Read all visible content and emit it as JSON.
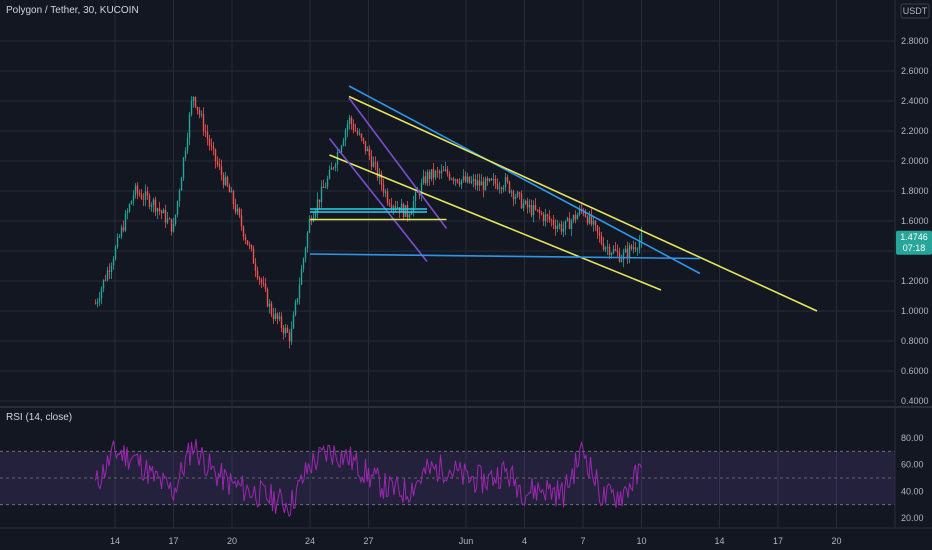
{
  "chart_data": [
    {
      "type": "line",
      "title": "Polygon / Tether, 30, KUCOIN",
      "quote_currency": "USDT",
      "ylim": [
        0.4,
        2.9
      ],
      "y_ticks": [
        "2.8000",
        "2.6000",
        "2.4000",
        "2.2000",
        "2.0000",
        "1.8000",
        "1.6000",
        "1.4000",
        "1.2000",
        "1.0000",
        "0.8000",
        "0.6000",
        "0.4000"
      ],
      "x_ticks": [
        "14",
        "17",
        "20",
        "24",
        "27",
        "Jun",
        "4",
        "7",
        "10",
        "14",
        "17",
        "20"
      ],
      "last_price": {
        "value": "1.4746",
        "countdown": "07:18",
        "color": "#26a69a"
      },
      "series": [
        {
          "x": [
            "May 13",
            "May 14",
            "May 15",
            "May 16",
            "May 17",
            "May 18",
            "May 19",
            "May 20",
            "May 21",
            "May 22",
            "May 23",
            "May 24",
            "May 25",
            "May 26",
            "May 27",
            "May 28",
            "May 29",
            "May 30",
            "May 31",
            "Jun 1",
            "Jun 2",
            "Jun 3",
            "Jun 4",
            "Jun 5",
            "Jun 6",
            "Jun 7",
            "Jun 8",
            "Jun 9",
            "Jun 10"
          ],
          "values": [
            1.05,
            1.4,
            1.8,
            1.72,
            1.55,
            2.45,
            2.05,
            1.75,
            1.38,
            1.0,
            0.82,
            1.62,
            1.9,
            2.28,
            2.05,
            1.75,
            1.65,
            1.9,
            1.92,
            1.86,
            1.84,
            1.86,
            1.7,
            1.63,
            1.55,
            1.68,
            1.45,
            1.36,
            1.48
          ]
        }
      ],
      "trendlines": [
        {
          "color": "#2e96e8",
          "from": [
            "May 26",
            2.5
          ],
          "to": [
            "Jun 13",
            1.25
          ]
        },
        {
          "color": "#e6e65c",
          "from": [
            "May 26",
            2.43
          ],
          "to": [
            "Jun 19",
            1.0
          ]
        },
        {
          "color": "#e6e65c",
          "from": [
            "May 25",
            2.04
          ],
          "to": [
            "Jun 11",
            1.14
          ]
        },
        {
          "color": "#7b4fcf",
          "from": [
            "May 26",
            2.42
          ],
          "to": [
            "May 31",
            1.55
          ]
        },
        {
          "color": "#7b4fcf",
          "from": [
            "May 25",
            2.15
          ],
          "to": [
            "May 30",
            1.33
          ]
        },
        {
          "color": "#2e96e8",
          "from": [
            "May 24",
            1.38
          ],
          "to": [
            "Jun 13",
            1.35
          ]
        },
        {
          "color": "#e6e65c",
          "from": [
            "May 24",
            1.61
          ],
          "to": [
            "May 31",
            1.61
          ]
        },
        {
          "color": "#22d3ee",
          "from": [
            "May 24",
            1.68
          ],
          "to": [
            "May 30",
            1.68
          ]
        },
        {
          "color": "#22d3ee",
          "from": [
            "May 24",
            1.66
          ],
          "to": [
            "May 30",
            1.66
          ]
        }
      ]
    },
    {
      "type": "line",
      "title": "RSI (14, close)",
      "ylim": [
        12,
        88
      ],
      "y_ticks": [
        "80.00",
        "60.00",
        "40.00",
        "20.00"
      ],
      "band": [
        30,
        70
      ],
      "midline": 50,
      "line_color": "#9c27b0",
      "series": [
        {
          "x": [
            "May 13",
            "May 14",
            "May 15",
            "May 16",
            "May 17",
            "May 18",
            "May 19",
            "May 20",
            "May 21",
            "May 22",
            "May 23",
            "May 24",
            "May 25",
            "May 26",
            "May 27",
            "May 28",
            "May 29",
            "May 30",
            "May 31",
            "Jun 1",
            "Jun 2",
            "Jun 3",
            "Jun 4",
            "Jun 5",
            "Jun 6",
            "Jun 7",
            "Jun 8",
            "Jun 9",
            "Jun 10"
          ],
          "values": [
            45,
            70,
            65,
            50,
            40,
            75,
            55,
            45,
            40,
            35,
            30,
            60,
            70,
            65,
            52,
            42,
            40,
            55,
            58,
            50,
            48,
            55,
            40,
            42,
            38,
            72,
            35,
            38,
            55
          ]
        }
      ]
    }
  ]
}
